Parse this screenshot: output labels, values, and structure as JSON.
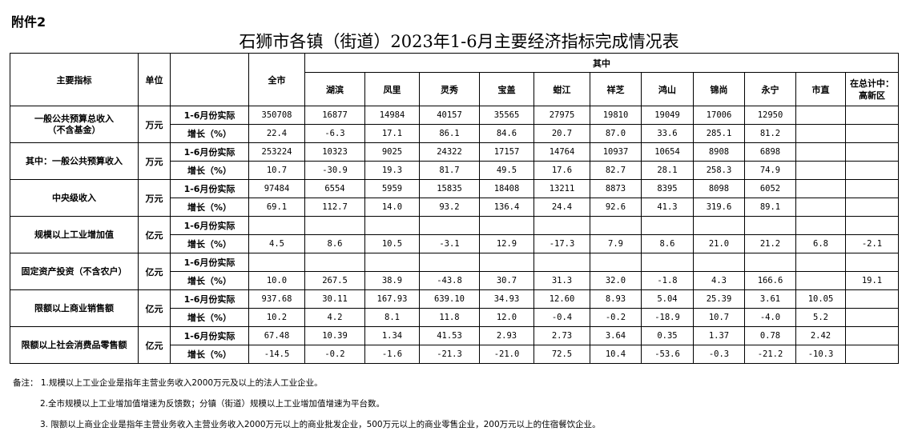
{
  "attachment": "附件2",
  "title": "石狮市各镇（街道）2023年1-6月主要经济指标完成情况表",
  "header": {
    "indicator": "主要指标",
    "unit": "单位",
    "total": "全市",
    "group": "其中",
    "columns": [
      "湖滨",
      "凤里",
      "灵秀",
      "宝盖",
      "蚶江",
      "祥芝",
      "鸿山",
      "锦尚",
      "永宁",
      "市直"
    ],
    "last_column": "在总计中：\n高新区"
  },
  "rows": [
    {
      "indicator": "一般公共预算总收入\n（不含基金）",
      "unit": "万元",
      "actual_label": "1-6月份实际",
      "actual": [
        "350708",
        "16877",
        "14984",
        "40157",
        "35565",
        "27975",
        "19810",
        "19049",
        "17006",
        "12950",
        "",
        ""
      ],
      "growth_label": "增长（%）",
      "growth": [
        "22.4",
        "-6.3",
        "17.1",
        "86.1",
        "84.6",
        "20.7",
        "87.0",
        "33.6",
        "285.1",
        "81.2",
        "",
        ""
      ]
    },
    {
      "indicator": "其中：一般公共预算收入",
      "unit": "万元",
      "actual_label": "1-6月份实际",
      "actual": [
        "253224",
        "10323",
        "9025",
        "24322",
        "17157",
        "14764",
        "10937",
        "10654",
        "8908",
        "6898",
        "",
        ""
      ],
      "growth_label": "增长（%）",
      "growth": [
        "10.7",
        "-30.9",
        "19.3",
        "81.7",
        "49.5",
        "17.6",
        "82.7",
        "28.1",
        "258.3",
        "74.9",
        "",
        ""
      ]
    },
    {
      "indicator": "中央级收入",
      "unit": "万元",
      "actual_label": "1-6月份实际",
      "actual": [
        "97484",
        "6554",
        "5959",
        "15835",
        "18408",
        "13211",
        "8873",
        "8395",
        "8098",
        "6052",
        "",
        ""
      ],
      "growth_label": "增长（%）",
      "growth": [
        "69.1",
        "112.7",
        "14.0",
        "93.2",
        "136.4",
        "24.4",
        "92.6",
        "41.3",
        "319.6",
        "89.1",
        "",
        ""
      ]
    },
    {
      "indicator": "规模以上工业增加值",
      "unit": "亿元",
      "actual_label": "1-6月份实际",
      "actual": [
        "",
        "",
        "",
        "",
        "",
        "",
        "",
        "",
        "",
        "",
        "",
        ""
      ],
      "growth_label": "增长（%）",
      "growth": [
        "4.5",
        "8.6",
        "10.5",
        "-3.1",
        "12.9",
        "-17.3",
        "7.9",
        "8.6",
        "21.0",
        "21.2",
        "6.8",
        "-2.1"
      ]
    },
    {
      "indicator": "固定资产投资（不含农户）",
      "unit": "亿元",
      "actual_label": "1-6月份实际",
      "actual": [
        "",
        "",
        "",
        "",
        "",
        "",
        "",
        "",
        "",
        "",
        "",
        ""
      ],
      "growth_label": "增长（%）",
      "growth": [
        "10.0",
        "267.5",
        "38.9",
        "-43.8",
        "30.7",
        "31.3",
        "32.0",
        "-1.8",
        "4.3",
        "166.6",
        "",
        "19.1"
      ]
    },
    {
      "indicator": "限额以上商业销售额",
      "unit": "亿元",
      "actual_label": "1-6月份实际",
      "actual": [
        "937.68",
        "30.11",
        "167.93",
        "639.10",
        "34.93",
        "12.60",
        "8.93",
        "5.04",
        "25.39",
        "3.61",
        "10.05",
        ""
      ],
      "growth_label": "增长（%）",
      "growth": [
        "10.2",
        "4.2",
        "8.1",
        "11.8",
        "12.0",
        "-0.4",
        "-0.2",
        "-18.9",
        "10.7",
        "-4.0",
        "5.2",
        ""
      ]
    },
    {
      "indicator": "限额以上社会消费品零售额",
      "unit": "亿元",
      "actual_label": "1-6月份实际",
      "actual": [
        "67.48",
        "10.39",
        "1.34",
        "41.53",
        "2.93",
        "2.73",
        "3.64",
        "0.35",
        "1.37",
        "0.78",
        "2.42",
        ""
      ],
      "growth_label": "增长（%）",
      "growth": [
        "-14.5",
        "-0.2",
        "-1.6",
        "-21.3",
        "-21.0",
        "72.5",
        "10.4",
        "-53.6",
        "-0.3",
        "-21.2",
        "-10.3",
        ""
      ]
    }
  ],
  "notes": [
    "备注：  1.规模以上工业企业是指年主营业务收入2000万元及以上的法人工业企业。",
    "2.全市规模以上工业增加值增速为反馈数；分镇（街道）规模以上工业增加值增速为平台数。",
    "3.  限额以上商业企业是指年主营业务收入主营业务收入2000万元以上的商业批发企业，500万元以上的商业零售企业，200万元以上的住宿餐饮企业。"
  ]
}
